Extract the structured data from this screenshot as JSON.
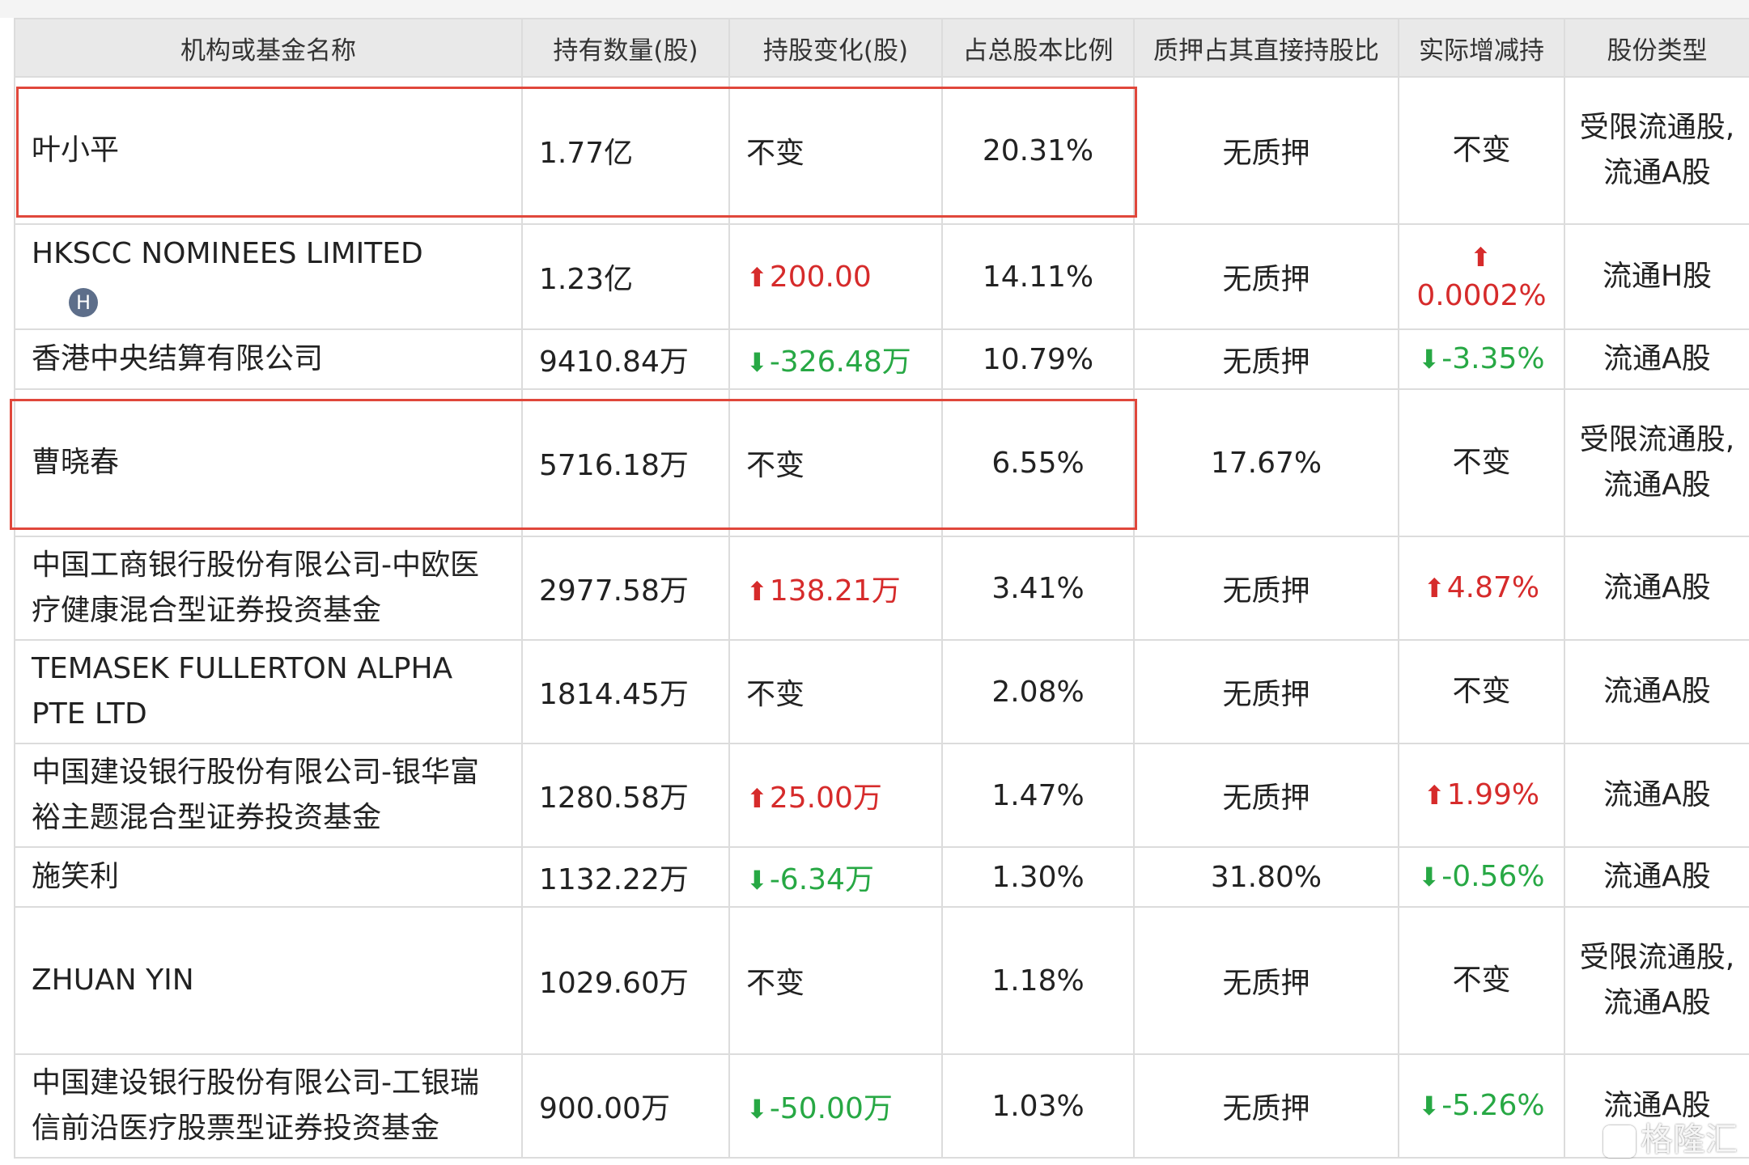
{
  "table": {
    "headers": [
      "机构或基金名称",
      "持有数量(股)",
      "持股变化(股)",
      "占总股本比例",
      "质押占其直接持股比",
      "实际增减持",
      "股份类型"
    ],
    "rows": [
      {
        "name": "叶小平",
        "badge": "",
        "holding": "1.77亿",
        "change": "不变",
        "change_dir": "none",
        "ratio": "20.31%",
        "pledge": "无质押",
        "actual": "不变",
        "actual_dir": "none",
        "type": "受限流通股,流通A股"
      },
      {
        "name": "HKSCC NOMINEES LIMITED",
        "badge": "H",
        "holding": "1.23亿",
        "change": "200.00",
        "change_dir": "up",
        "ratio": "14.11%",
        "pledge": "无质押",
        "actual": "0.0002%",
        "actual_dir": "up",
        "type": "流通H股"
      },
      {
        "name": "香港中央结算有限公司",
        "badge": "",
        "holding": "9410.84万",
        "change": "-326.48万",
        "change_dir": "down",
        "ratio": "10.79%",
        "pledge": "无质押",
        "actual": "-3.35%",
        "actual_dir": "down",
        "type": "流通A股"
      },
      {
        "name": "曹晓春",
        "badge": "",
        "holding": "5716.18万",
        "change": "不变",
        "change_dir": "none",
        "ratio": "6.55%",
        "pledge": "17.67%",
        "actual": "不变",
        "actual_dir": "none",
        "type": "受限流通股,流通A股"
      },
      {
        "name": "中国工商银行股份有限公司-中欧医疗健康混合型证券投资基金",
        "badge": "",
        "holding": "2977.58万",
        "change": "138.21万",
        "change_dir": "up",
        "ratio": "3.41%",
        "pledge": "无质押",
        "actual": "4.87%",
        "actual_dir": "up",
        "type": "流通A股"
      },
      {
        "name": "TEMASEK FULLERTON ALPHA PTE LTD",
        "badge": "",
        "holding": "1814.45万",
        "change": "不变",
        "change_dir": "none",
        "ratio": "2.08%",
        "pledge": "无质押",
        "actual": "不变",
        "actual_dir": "none",
        "type": "流通A股"
      },
      {
        "name": "中国建设银行股份有限公司-银华富裕主题混合型证券投资基金",
        "badge": "",
        "holding": "1280.58万",
        "change": "25.00万",
        "change_dir": "up",
        "ratio": "1.47%",
        "pledge": "无质押",
        "actual": "1.99%",
        "actual_dir": "up",
        "type": "流通A股"
      },
      {
        "name": "施笑利",
        "badge": "",
        "holding": "1132.22万",
        "change": "-6.34万",
        "change_dir": "down",
        "ratio": "1.30%",
        "pledge": "31.80%",
        "actual": "-0.56%",
        "actual_dir": "down",
        "type": "流通A股"
      },
      {
        "name": "ZHUAN YIN",
        "badge": "",
        "holding": "1029.60万",
        "change": "不变",
        "change_dir": "none",
        "ratio": "1.18%",
        "pledge": "无质押",
        "actual": "不变",
        "actual_dir": "none",
        "type": "受限流通股,流通A股"
      },
      {
        "name": "中国建设银行股份有限公司-工银瑞信前沿医疗股票型证券投资基金",
        "badge": "",
        "holding": "900.00万",
        "change": "-50.00万",
        "change_dir": "down",
        "ratio": "1.03%",
        "pledge": "无质押",
        "actual": "-5.26%",
        "actual_dir": "down",
        "type": "流通A股"
      }
    ]
  },
  "highlighted_rows": [
    "叶小平",
    "曹晓春"
  ],
  "watermark": "格隆汇",
  "colors": {
    "up": "#d62b2b",
    "down": "#27a844",
    "highlight": "#e0473b",
    "header_bg": "#e9e9e9",
    "border": "#dcdcdc"
  },
  "icons": {
    "up": "up-arrow-icon",
    "down": "down-arrow-icon",
    "badge": "hk-badge-icon"
  }
}
